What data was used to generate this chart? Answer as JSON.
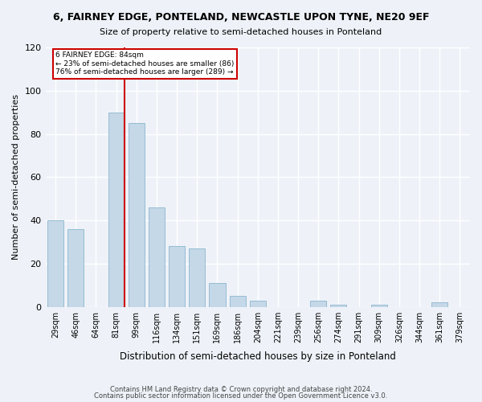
{
  "title": "6, FAIRNEY EDGE, PONTELAND, NEWCASTLE UPON TYNE, NE20 9EF",
  "subtitle": "Size of property relative to semi-detached houses in Ponteland",
  "xlabel": "Distribution of semi-detached houses by size in Ponteland",
  "ylabel": "Number of semi-detached properties",
  "categories": [
    "29sqm",
    "46sqm",
    "64sqm",
    "81sqm",
    "99sqm",
    "116sqm",
    "134sqm",
    "151sqm",
    "169sqm",
    "186sqm",
    "204sqm",
    "221sqm",
    "239sqm",
    "256sqm",
    "274sqm",
    "291sqm",
    "309sqm",
    "326sqm",
    "344sqm",
    "361sqm",
    "379sqm"
  ],
  "values": [
    40,
    36,
    0,
    90,
    85,
    46,
    28,
    27,
    11,
    5,
    3,
    0,
    0,
    3,
    1,
    0,
    1,
    0,
    0,
    2,
    0
  ],
  "bar_color": "#c5d8e8",
  "bar_edge_color": "#7aacc8",
  "subject_sqm": 84,
  "subject_label": "6 FAIRNEY EDGE: 84sqm",
  "pct_smaller": 23,
  "n_smaller": 86,
  "pct_larger": 76,
  "n_larger": 289,
  "ylim": [
    0,
    120
  ],
  "yticks": [
    0,
    20,
    40,
    60,
    80,
    100,
    120
  ],
  "footer1": "Contains HM Land Registry data © Crown copyright and database right 2024.",
  "footer2": "Contains public sector information licensed under the Open Government Licence v3.0.",
  "bg_color": "#eef2f8",
  "grid_color": "#ffffff",
  "annotation_box_color": "#cc0000",
  "red_line_color": "#cc0000"
}
